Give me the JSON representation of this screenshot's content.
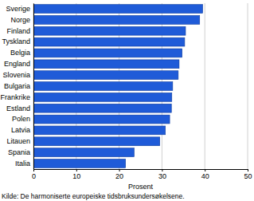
{
  "chart_data": {
    "type": "bar",
    "orientation": "horizontal",
    "categories": [
      "Sverige",
      "Norge",
      "Finland",
      "Tyskland",
      "Belgia",
      "England",
      "Slovenia",
      "Bulgaria",
      "Frankrike",
      "Estland",
      "Polen",
      "Latvia",
      "Litauen",
      "Spania",
      "Italia"
    ],
    "values": [
      39.5,
      38.8,
      35.5,
      35.3,
      34.7,
      34.0,
      33.8,
      32.5,
      32.3,
      32.2,
      31.8,
      30.8,
      29.5,
      23.5,
      21.5
    ],
    "color": "#1f5bd8",
    "x_label": "Prosent",
    "source": "Kilde: De harmoniserte europeiske tidsbruksundersøkelsene.",
    "xlim": [
      0,
      50
    ],
    "xticks": [
      0,
      10,
      20,
      30,
      40,
      50
    ],
    "grid": true
  }
}
